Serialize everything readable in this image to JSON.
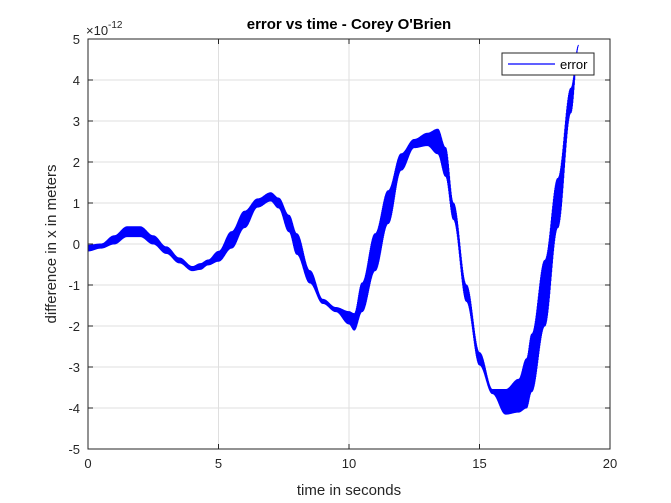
{
  "chart_data": {
    "type": "line",
    "title": "error vs time - Corey O'Brien",
    "xlabel": "time in seconds",
    "ylabel": "difference in x in meters",
    "y_exponent_base": "×10",
    "y_exponent_power": "-12",
    "xlim": [
      0,
      20
    ],
    "ylim": [
      -5,
      5
    ],
    "y_scale_exponent": -12,
    "x_ticks": [
      0,
      5,
      10,
      15,
      20
    ],
    "x_tick_labels": [
      "0",
      "5",
      "10",
      "15",
      "20"
    ],
    "y_ticks": [
      -5,
      -4,
      -3,
      -2,
      -1,
      0,
      1,
      2,
      3,
      4,
      5
    ],
    "y_tick_labels": [
      "-5",
      "-4",
      "-3",
      "-2",
      "-1",
      "0",
      "1",
      "2",
      "3",
      "4",
      "5"
    ],
    "grid": true,
    "legend_position": "top-right",
    "series": [
      {
        "name": "error",
        "color": "#0000ff",
        "x": [
          0,
          0.5,
          1.0,
          1.5,
          2.0,
          2.5,
          3.0,
          3.5,
          4.0,
          4.3,
          4.6,
          5.0,
          5.5,
          6.0,
          6.5,
          7.0,
          7.3,
          7.7,
          8.0,
          8.5,
          9.0,
          9.5,
          10.0,
          10.2,
          10.5,
          11.0,
          11.5,
          12.0,
          12.5,
          13.0,
          13.4,
          13.7,
          14.0,
          14.5,
          15.0,
          15.5,
          16.0,
          16.5,
          16.8,
          17.0,
          17.5,
          18.0,
          18.5,
          18.8
        ],
        "y": [
          -0.1,
          -0.05,
          0.1,
          0.3,
          0.3,
          0.1,
          -0.15,
          -0.4,
          -0.6,
          -0.55,
          -0.45,
          -0.3,
          0.1,
          0.6,
          1.0,
          1.15,
          1.0,
          0.5,
          0.0,
          -0.8,
          -1.4,
          -1.6,
          -1.8,
          -1.9,
          -1.3,
          -0.2,
          0.9,
          2.0,
          2.45,
          2.55,
          2.5,
          2.0,
          0.8,
          -1.2,
          -2.8,
          -3.6,
          -3.85,
          -3.7,
          -3.4,
          -2.9,
          -1.2,
          1.0,
          3.5,
          4.85
        ],
        "oscillation_amplitude": [
          0.07,
          0.05,
          0.1,
          0.12,
          0.12,
          0.1,
          0.08,
          0.06,
          0.05,
          0.07,
          0.06,
          0.12,
          0.2,
          0.2,
          0.1,
          0.1,
          0.12,
          0.2,
          0.25,
          0.15,
          0.05,
          0.05,
          0.15,
          0.2,
          0.35,
          0.45,
          0.4,
          0.2,
          0.1,
          0.15,
          0.3,
          0.35,
          0.2,
          0.2,
          0.15,
          0.05,
          0.3,
          0.4,
          0.6,
          0.7,
          0.8,
          0.6,
          0.3,
          0.0
        ]
      }
    ]
  }
}
